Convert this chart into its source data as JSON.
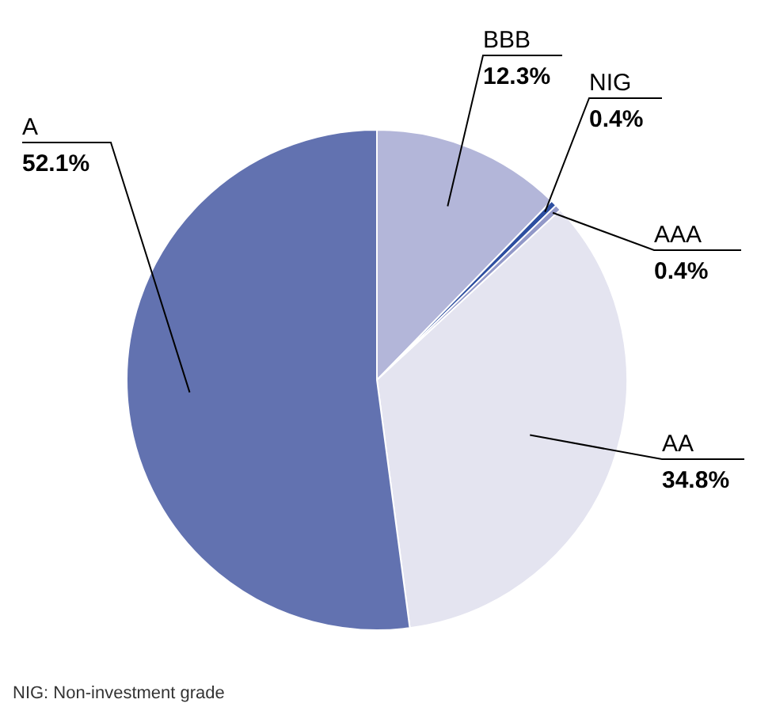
{
  "chart_data": {
    "type": "pie",
    "categories": [
      "BBB",
      "NIG",
      "AAA",
      "AA",
      "A"
    ],
    "values": [
      12.3,
      0.4,
      0.4,
      34.8,
      52.1
    ],
    "value_labels": [
      "12.3%",
      "0.4%",
      "0.4%",
      "34.8%",
      "52.1%"
    ],
    "colors": [
      "#b3b6d9",
      "#2d4fa0",
      "#9298c8",
      "#e4e4f0",
      "#6272b0"
    ],
    "annotations": [
      "NIG: Non-investment grade"
    ]
  }
}
